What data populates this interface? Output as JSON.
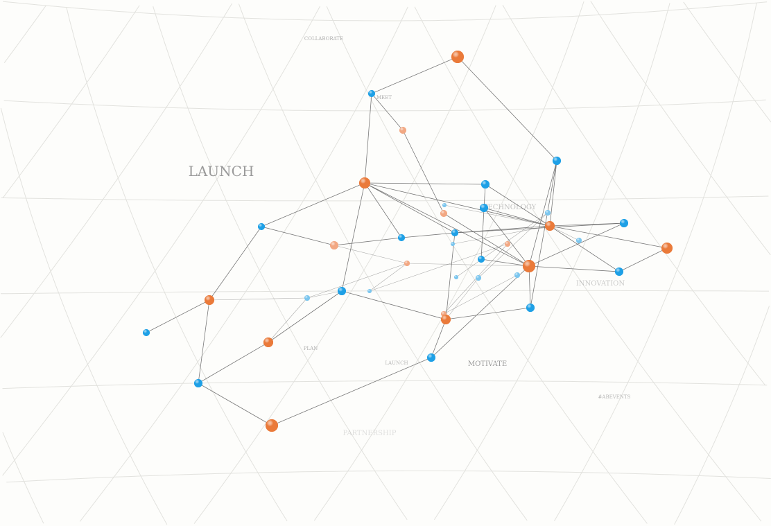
{
  "labels": [
    {
      "text": "COLLABORATE",
      "size": "small",
      "opacity": 0.8
    },
    {
      "text": "MEET",
      "size": "small",
      "opacity": 0.8
    },
    {
      "text": "LAUNCH",
      "size": "large",
      "opacity": 1
    },
    {
      "text": "TECHNOLOGY",
      "size": "medium",
      "opacity": 0.6
    },
    {
      "text": "INNOVATION",
      "size": "medium",
      "opacity": 0.5
    },
    {
      "text": "PLAN",
      "size": "small",
      "opacity": 0.8
    },
    {
      "text": "LAUNCH",
      "size": "small",
      "opacity": 0.7
    },
    {
      "text": "MOTIVATE",
      "size": "medium",
      "opacity": 1
    },
    {
      "text": "#ABEVENTS",
      "size": "small",
      "opacity": 0.7
    },
    {
      "text": "PARTNERSHIP",
      "size": "medium",
      "opacity": 0.3
    }
  ],
  "colors": {
    "background": "#fdfdfb",
    "grid": "#e2e2de",
    "edge": "#6a6a6a",
    "node_blue": "#1ea0e6",
    "node_orange": "#ea7a3a",
    "node_peach": "#f2a883",
    "node_lightblue": "#7cc6ee"
  },
  "nodes": [
    "orange",
    "blue",
    "peach",
    "blue",
    "orange",
    "blue",
    "blue",
    "lightblue",
    "peach",
    "lightblue",
    "orange",
    "blue",
    "orange",
    "blue",
    "peach",
    "blue",
    "blue",
    "lightblue",
    "peach",
    "lightblue",
    "orange",
    "blue",
    "blue",
    "peach",
    "lightblue",
    "lightblue",
    "lightblue",
    "orange",
    "lightblue",
    "blue",
    "lightblue",
    "peach",
    "orange",
    "blue",
    "blue",
    "orange",
    "blue",
    "blue",
    "orange"
  ]
}
